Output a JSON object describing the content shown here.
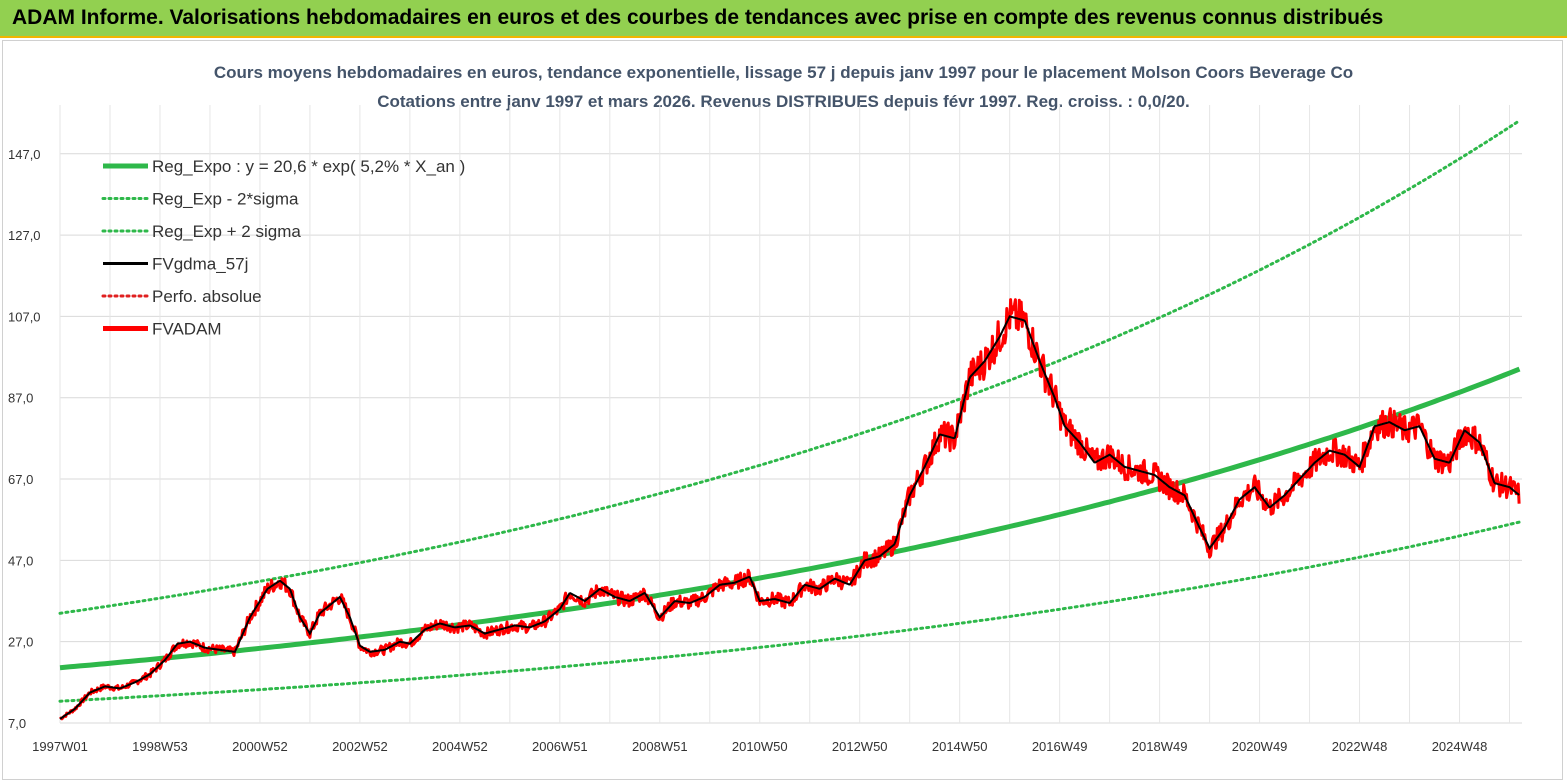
{
  "header": {
    "title": "ADAM Informe. Valorisations hebdomadaires en euros et des courbes de tendances avec prise en compte des revenus connus distribués"
  },
  "chart_data": {
    "type": "line",
    "title": "Cours moyens hebdomadaires en euros, tendance exponentielle, lissage 57 j depuis janv 1997  pour le placement Molson Coors Beverage Co",
    "subtitle": "Cotations entre janv 1997 et mars 2026. Revenus DISTRIBUES depuis févr 1997. Reg. croiss. : 0,0/20.",
    "xlabel": "",
    "ylabel": "",
    "ylim": [
      7.0,
      159.0
    ],
    "xlim": [
      1997.0,
      2026.25
    ],
    "grid": true,
    "legend_position": "top-left",
    "y_ticks": [
      "7,0",
      "27,0",
      "47,0",
      "67,0",
      "87,0",
      "107,0",
      "127,0",
      "147,0"
    ],
    "y_tick_values": [
      7,
      27,
      47,
      67,
      87,
      107,
      127,
      147
    ],
    "x_ticks": [
      "1997W01",
      "1998W53",
      "2000W52",
      "2002W52",
      "2004W52",
      "2006W51",
      "2008W51",
      "2010W50",
      "2012W50",
      "2014W50",
      "2016W49",
      "2018W49",
      "2020W49",
      "2022W48",
      "2024W48"
    ],
    "x_tick_values": [
      1997.0,
      1999.0,
      2001.0,
      2003.0,
      2005.0,
      2007.0,
      2009.0,
      2011.0,
      2013.0,
      2015.0,
      2017.0,
      2019.0,
      2021.0,
      2023.0,
      2025.0
    ],
    "regression": {
      "a": 20.6,
      "b": 0.052
    },
    "series": [
      {
        "name": "Reg_Expo : y = 20,6 * exp( 5,2% *  X_an )",
        "style": "solid-thick",
        "color": "#2eb84a"
      },
      {
        "name": "Reg_Exp - 2*sigma",
        "style": "dotted",
        "color": "#2eb84a",
        "factor": 0.6
      },
      {
        "name": "Reg_Exp + 2 sigma",
        "style": "dotted",
        "color": "#2eb84a",
        "factor": 1.65
      },
      {
        "name": "FVgdma_57j",
        "style": "solid",
        "color": "#000000"
      },
      {
        "name": "Perfo. absolue",
        "style": "dotted",
        "color": "#e02020"
      },
      {
        "name": "FVADAM",
        "style": "solid-thick",
        "color": "#ff0000",
        "x": [
          1997.0,
          1997.3,
          1997.6,
          1997.9,
          1998.2,
          1998.5,
          1998.8,
          1999.1,
          1999.35,
          1999.6,
          1999.9,
          2000.2,
          2000.5,
          2000.8,
          2000.95,
          2001.15,
          2001.4,
          2001.6,
          2001.8,
          2002.0,
          2002.2,
          2002.4,
          2002.6,
          2002.8,
          2003.0,
          2003.2,
          2003.5,
          2003.8,
          2004.0,
          2004.3,
          2004.6,
          2004.9,
          2005.2,
          2005.5,
          2005.8,
          2006.1,
          2006.4,
          2006.7,
          2007.0,
          2007.2,
          2007.5,
          2007.8,
          2008.1,
          2008.4,
          2008.7,
          2009.0,
          2009.3,
          2009.6,
          2009.9,
          2010.2,
          2010.5,
          2010.8,
          2011.0,
          2011.3,
          2011.6,
          2011.9,
          2012.2,
          2012.5,
          2012.8,
          2013.1,
          2013.4,
          2013.7,
          2014.0,
          2014.3,
          2014.6,
          2014.9,
          2015.2,
          2015.5,
          2015.8,
          2016.0,
          2016.3,
          2016.6,
          2016.9,
          2017.1,
          2017.4,
          2017.7,
          2018.0,
          2018.3,
          2018.6,
          2018.9,
          2019.2,
          2019.5,
          2019.8,
          2020.0,
          2020.3,
          2020.6,
          2020.9,
          2021.2,
          2021.5,
          2021.8,
          2022.1,
          2022.4,
          2022.7,
          2023.0,
          2023.3,
          2023.6,
          2023.9,
          2024.2,
          2024.5,
          2024.8,
          2025.1,
          2025.4,
          2025.7,
          2026.0,
          2026.2
        ],
        "values": [
          8.0,
          10.5,
          14.5,
          16.0,
          15.5,
          17.0,
          19.0,
          22.5,
          26.5,
          27.0,
          25.5,
          25.0,
          24.5,
          33.0,
          36.0,
          40.0,
          42.0,
          40.0,
          33.0,
          29.0,
          34.0,
          36.0,
          38.0,
          33.0,
          26.0,
          24.5,
          25.0,
          27.0,
          26.5,
          30.0,
          31.5,
          30.5,
          31.0,
          29.0,
          30.0,
          31.0,
          30.5,
          32.0,
          35.0,
          39.0,
          37.0,
          40.0,
          38.0,
          37.0,
          39.0,
          33.0,
          37.0,
          36.5,
          38.0,
          41.0,
          41.5,
          43.0,
          37.0,
          37.5,
          36.5,
          41.0,
          40.0,
          42.5,
          41.0,
          47.0,
          48.0,
          51.0,
          63.0,
          70.0,
          78.0,
          77.0,
          92.0,
          96.0,
          102.0,
          107.0,
          106.0,
          96.0,
          87.0,
          80.0,
          76.0,
          71.0,
          73.0,
          70.0,
          69.0,
          68.0,
          65.0,
          63.0,
          55.0,
          50.0,
          55.0,
          62.0,
          65.0,
          60.0,
          63.0,
          67.0,
          71.0,
          74.0,
          73.0,
          70.0,
          80.0,
          81.0,
          79.0,
          80.0,
          72.0,
          71.0,
          79.0,
          76.0,
          66.0,
          65.0,
          63.0
        ]
      }
    ]
  }
}
